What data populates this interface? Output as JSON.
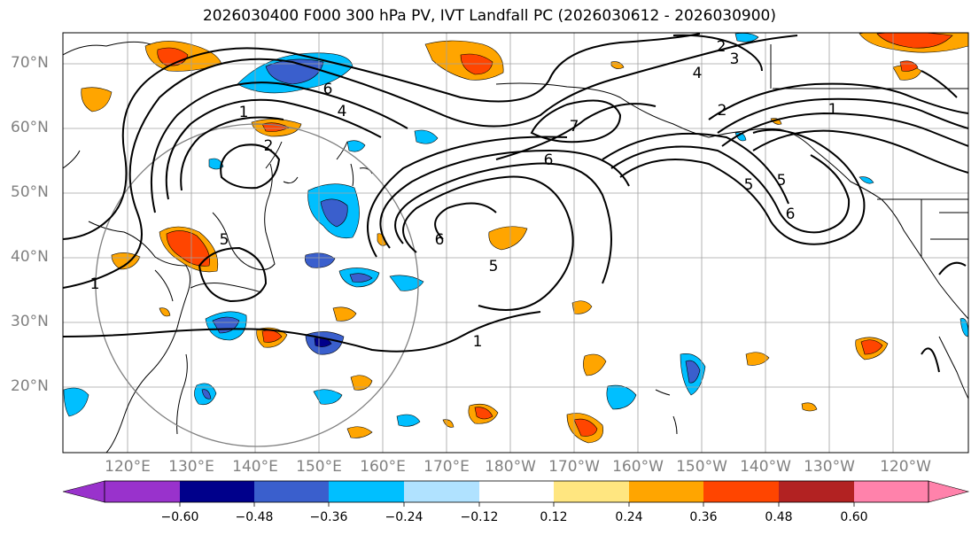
{
  "title": "2026030400 F000 300 hPa PV, IVT Landfall PC (2026030612 - 2026030900)",
  "lat_labels": [
    "70°N",
    "60°N",
    "50°N",
    "40°N",
    "30°N",
    "20°N"
  ],
  "lon_labels": [
    "120°E",
    "130°E",
    "140°E",
    "150°E",
    "160°E",
    "170°E",
    "180°W",
    "170°W",
    "160°W",
    "150°W",
    "140°W",
    "130°W",
    "120°W"
  ],
  "contour_labels": [
    "1",
    "2",
    "3",
    "4",
    "5",
    "6",
    "7"
  ],
  "colorbar": {
    "ticks": [
      "−0.60",
      "−0.48",
      "−0.36",
      "−0.24",
      "−0.12",
      "0.12",
      "0.24",
      "0.36",
      "0.48",
      "0.60"
    ],
    "colors": [
      "#9932cc",
      "#00008b",
      "#3a5fcd",
      "#00bfff",
      "#b0e2ff",
      "#ffffff",
      "#ffe680",
      "#ffa500",
      "#ff4500",
      "#b22222",
      "#ff82ab"
    ]
  }
}
